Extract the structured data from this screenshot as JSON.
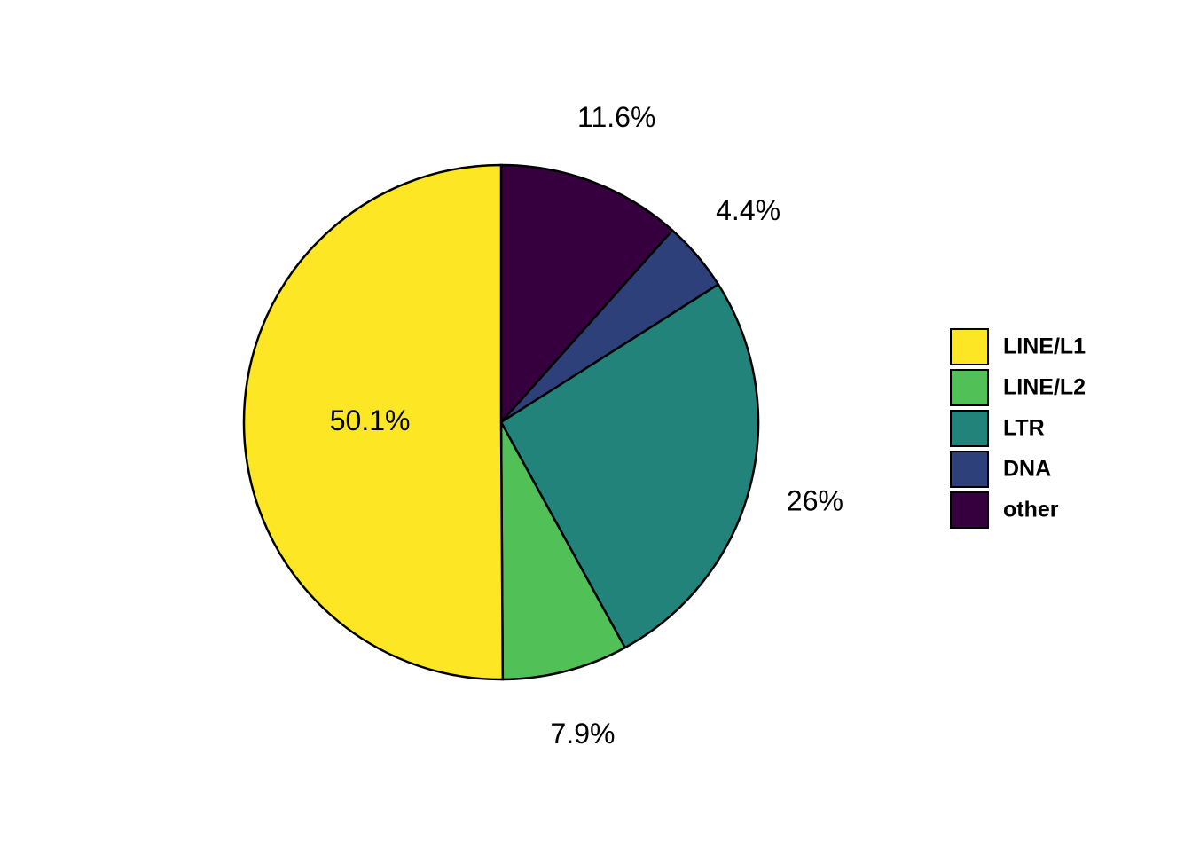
{
  "chart_data": {
    "type": "pie",
    "categories": [
      "LINE/L1",
      "LINE/L2",
      "LTR",
      "DNA",
      "other"
    ],
    "values": [
      50.1,
      7.9,
      26,
      4.4,
      11.6
    ],
    "value_labels": [
      "50.1%",
      "7.9%",
      "26%",
      "4.4%",
      "11.6%"
    ],
    "colors": [
      "#fde725",
      "#51c056",
      "#21837a",
      "#2e4079",
      "#36003f"
    ],
    "legend": "right"
  }
}
